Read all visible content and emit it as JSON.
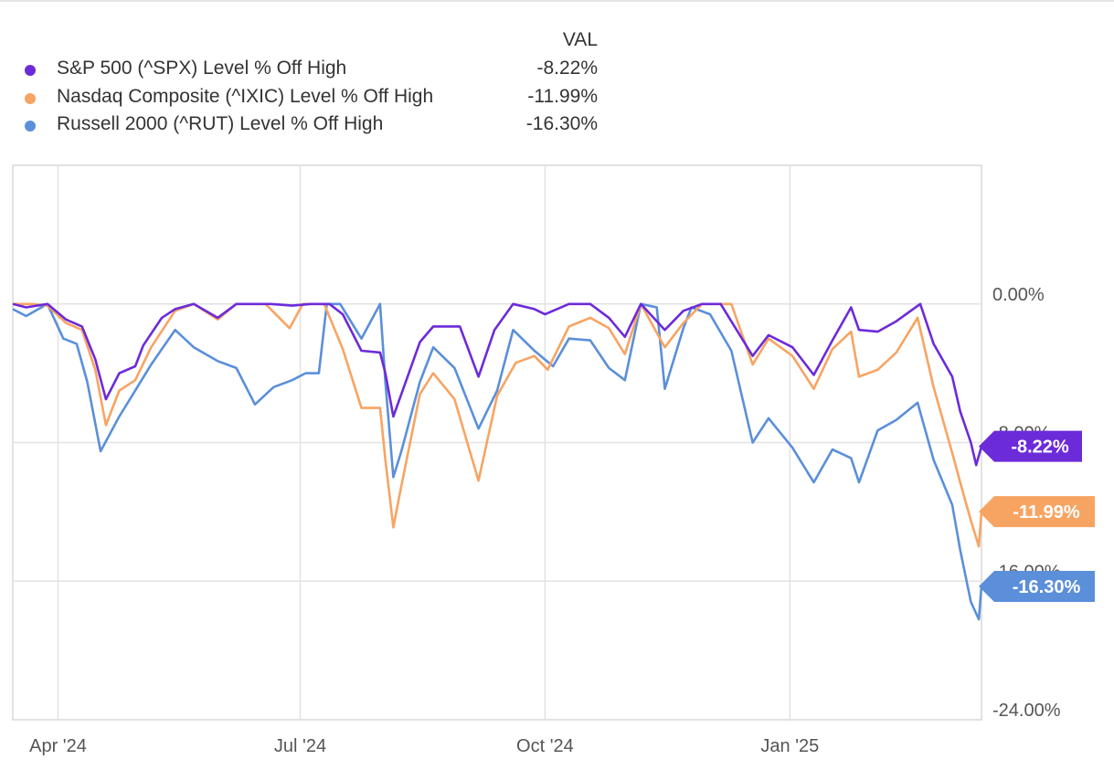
{
  "legend": {
    "header": "VAL",
    "items": [
      {
        "name": "S&P 500 (^SPX) Level % Off High",
        "value": "-8.22%"
      },
      {
        "name": "Nasdaq Composite (^IXIC) Level % Off High",
        "value": "-11.99%"
      },
      {
        "name": "Russell 2000 (^RUT) Level % Off High",
        "value": "-16.30%"
      }
    ]
  },
  "chart_data": {
    "type": "line",
    "title": "",
    "xlabel": "",
    "ylabel": "",
    "x_tick_labels": [
      "Apr '24",
      "Jul '24",
      "Oct '24",
      "Jan '25"
    ],
    "y_tick_labels": [
      "0.00%",
      "-8.00%",
      "-16.00%",
      "-24.00%"
    ],
    "y_ticks": [
      0,
      -8,
      -16,
      -24
    ],
    "ylim": [
      -24,
      8
    ],
    "xlim": [
      "2024-03-15",
      "2025-03-14"
    ],
    "x_ticks": [
      "2024-04-01",
      "2024-07-01",
      "2024-10-01",
      "2025-01-01"
    ],
    "grid": true,
    "legend_position": "top-left",
    "series": [
      {
        "name": "S&P 500 (^SPX) Level % Off High",
        "color": "#6c2bd9",
        "end_label": "-8.22%",
        "points": [
          [
            "2024-03-15",
            0
          ],
          [
            "2024-03-20",
            -0.2
          ],
          [
            "2024-03-28",
            0
          ],
          [
            "2024-04-04",
            -0.9
          ],
          [
            "2024-04-10",
            -1.3
          ],
          [
            "2024-04-15",
            -3.2
          ],
          [
            "2024-04-19",
            -5.5
          ],
          [
            "2024-04-24",
            -4.0
          ],
          [
            "2024-04-30",
            -3.6
          ],
          [
            "2024-05-03",
            -2.4
          ],
          [
            "2024-05-10",
            -0.8
          ],
          [
            "2024-05-15",
            -0.3
          ],
          [
            "2024-05-22",
            0
          ],
          [
            "2024-05-31",
            -0.8
          ],
          [
            "2024-06-07",
            0
          ],
          [
            "2024-06-20",
            0
          ],
          [
            "2024-06-28",
            -0.1
          ],
          [
            "2024-07-05",
            0
          ],
          [
            "2024-07-12",
            0
          ],
          [
            "2024-07-17",
            -0.6
          ],
          [
            "2024-07-24",
            -2.7
          ],
          [
            "2024-07-31",
            -2.8
          ],
          [
            "2024-08-02",
            -4.0
          ],
          [
            "2024-08-05",
            -6.5
          ],
          [
            "2024-08-08",
            -5.2
          ],
          [
            "2024-08-15",
            -2.2
          ],
          [
            "2024-08-20",
            -1.3
          ],
          [
            "2024-08-30",
            -1.3
          ],
          [
            "2024-09-06",
            -4.2
          ],
          [
            "2024-09-12",
            -1.5
          ],
          [
            "2024-09-19",
            0
          ],
          [
            "2024-09-27",
            -0.3
          ],
          [
            "2024-10-01",
            -0.6
          ],
          [
            "2024-10-10",
            0
          ],
          [
            "2024-10-18",
            0
          ],
          [
            "2024-10-25",
            -0.8
          ],
          [
            "2024-10-31",
            -1.9
          ],
          [
            "2024-11-06",
            0
          ],
          [
            "2024-11-15",
            -1.5
          ],
          [
            "2024-11-22",
            -0.4
          ],
          [
            "2024-11-29",
            0
          ],
          [
            "2024-12-06",
            0
          ],
          [
            "2024-12-18",
            -3.0
          ],
          [
            "2024-12-24",
            -1.8
          ],
          [
            "2025-01-02",
            -2.5
          ],
          [
            "2025-01-10",
            -4.1
          ],
          [
            "2025-01-17",
            -2.1
          ],
          [
            "2025-01-24",
            -0.2
          ],
          [
            "2025-01-27",
            -1.5
          ],
          [
            "2025-02-03",
            -1.6
          ],
          [
            "2025-02-10",
            -1.0
          ],
          [
            "2025-02-19",
            0
          ],
          [
            "2025-02-24",
            -2.3
          ],
          [
            "2025-03-03",
            -4.2
          ],
          [
            "2025-03-06",
            -6.2
          ],
          [
            "2025-03-10",
            -8.0
          ],
          [
            "2025-03-12",
            -9.3
          ],
          [
            "2025-03-14",
            -8.22
          ]
        ]
      },
      {
        "name": "Nasdaq Composite (^IXIC) Level % Off High",
        "color": "#f7a463",
        "end_label": "-11.99%",
        "points": [
          [
            "2024-03-15",
            0
          ],
          [
            "2024-03-22",
            0
          ],
          [
            "2024-03-28",
            -0.1
          ],
          [
            "2024-04-04",
            -1.1
          ],
          [
            "2024-04-10",
            -1.5
          ],
          [
            "2024-04-15",
            -3.8
          ],
          [
            "2024-04-19",
            -7.0
          ],
          [
            "2024-04-24",
            -5.0
          ],
          [
            "2024-04-30",
            -4.4
          ],
          [
            "2024-05-06",
            -2.5
          ],
          [
            "2024-05-15",
            -0.4
          ],
          [
            "2024-05-22",
            0
          ],
          [
            "2024-05-31",
            -0.9
          ],
          [
            "2024-06-07",
            0
          ],
          [
            "2024-06-18",
            0
          ],
          [
            "2024-06-27",
            -1.4
          ],
          [
            "2024-07-02",
            0
          ],
          [
            "2024-07-10",
            0
          ],
          [
            "2024-07-17",
            -2.6
          ],
          [
            "2024-07-24",
            -6.0
          ],
          [
            "2024-07-31",
            -6.0
          ],
          [
            "2024-08-02",
            -9.0
          ],
          [
            "2024-08-05",
            -12.9
          ],
          [
            "2024-08-08",
            -10.5
          ],
          [
            "2024-08-15",
            -5.2
          ],
          [
            "2024-08-20",
            -4.0
          ],
          [
            "2024-08-28",
            -5.5
          ],
          [
            "2024-09-06",
            -10.2
          ],
          [
            "2024-09-13",
            -5.3
          ],
          [
            "2024-09-20",
            -3.4
          ],
          [
            "2024-09-27",
            -3.0
          ],
          [
            "2024-10-02",
            -3.8
          ],
          [
            "2024-10-10",
            -1.3
          ],
          [
            "2024-10-18",
            -0.8
          ],
          [
            "2024-10-25",
            -1.4
          ],
          [
            "2024-10-31",
            -2.9
          ],
          [
            "2024-11-06",
            0
          ],
          [
            "2024-11-15",
            -2.5
          ],
          [
            "2024-11-22",
            -1.1
          ],
          [
            "2024-11-29",
            0
          ],
          [
            "2024-12-10",
            0
          ],
          [
            "2024-12-18",
            -3.5
          ],
          [
            "2024-12-24",
            -2.0
          ],
          [
            "2025-01-02",
            -3.0
          ],
          [
            "2025-01-10",
            -4.9
          ],
          [
            "2025-01-17",
            -2.6
          ],
          [
            "2025-01-24",
            -1.6
          ],
          [
            "2025-01-27",
            -4.2
          ],
          [
            "2025-02-03",
            -3.8
          ],
          [
            "2025-02-10",
            -2.8
          ],
          [
            "2025-02-18",
            -0.8
          ],
          [
            "2025-02-24",
            -4.8
          ],
          [
            "2025-03-03",
            -8.6
          ],
          [
            "2025-03-06",
            -10.3
          ],
          [
            "2025-03-10",
            -12.5
          ],
          [
            "2025-03-13",
            -14.0
          ],
          [
            "2025-03-14",
            -11.99
          ]
        ]
      },
      {
        "name": "Russell 2000 (^RUT) Level % Off High",
        "color": "#5b8fd9",
        "end_label": "-16.30%",
        "points": [
          [
            "2024-03-15",
            -0.3
          ],
          [
            "2024-03-20",
            -0.7
          ],
          [
            "2024-03-28",
            0
          ],
          [
            "2024-04-03",
            -2.0
          ],
          [
            "2024-04-08",
            -2.3
          ],
          [
            "2024-04-12",
            -4.5
          ],
          [
            "2024-04-17",
            -8.5
          ],
          [
            "2024-04-24",
            -6.5
          ],
          [
            "2024-04-30",
            -5.0
          ],
          [
            "2024-05-06",
            -3.5
          ],
          [
            "2024-05-15",
            -1.5
          ],
          [
            "2024-05-22",
            -2.5
          ],
          [
            "2024-05-31",
            -3.3
          ],
          [
            "2024-06-07",
            -3.7
          ],
          [
            "2024-06-14",
            -5.8
          ],
          [
            "2024-06-21",
            -4.8
          ],
          [
            "2024-06-28",
            -4.4
          ],
          [
            "2024-07-03",
            -4.0
          ],
          [
            "2024-07-08",
            -4.0
          ],
          [
            "2024-07-11",
            0
          ],
          [
            "2024-07-16",
            0
          ],
          [
            "2024-07-24",
            -2.0
          ],
          [
            "2024-07-31",
            0
          ],
          [
            "2024-08-02",
            -4.5
          ],
          [
            "2024-08-05",
            -10.0
          ],
          [
            "2024-08-08",
            -8.5
          ],
          [
            "2024-08-15",
            -4.5
          ],
          [
            "2024-08-20",
            -2.5
          ],
          [
            "2024-08-28",
            -3.7
          ],
          [
            "2024-09-06",
            -7.2
          ],
          [
            "2024-09-13",
            -5.0
          ],
          [
            "2024-09-19",
            -1.5
          ],
          [
            "2024-09-27",
            -2.7
          ],
          [
            "2024-10-04",
            -3.6
          ],
          [
            "2024-10-10",
            -2.0
          ],
          [
            "2024-10-18",
            -2.1
          ],
          [
            "2024-10-25",
            -3.7
          ],
          [
            "2024-10-31",
            -4.4
          ],
          [
            "2024-11-06",
            0
          ],
          [
            "2024-11-12",
            -0.2
          ],
          [
            "2024-11-15",
            -4.9
          ],
          [
            "2024-11-22",
            -1.4
          ],
          [
            "2024-11-25",
            -0.2
          ],
          [
            "2024-12-02",
            -0.6
          ],
          [
            "2024-12-10",
            -2.7
          ],
          [
            "2024-12-18",
            -8.0
          ],
          [
            "2024-12-24",
            -6.6
          ],
          [
            "2025-01-02",
            -8.3
          ],
          [
            "2025-01-10",
            -10.3
          ],
          [
            "2025-01-17",
            -8.4
          ],
          [
            "2025-01-24",
            -8.9
          ],
          [
            "2025-01-27",
            -10.3
          ],
          [
            "2025-02-03",
            -7.3
          ],
          [
            "2025-02-10",
            -6.7
          ],
          [
            "2025-02-18",
            -5.7
          ],
          [
            "2025-02-24",
            -9.0
          ],
          [
            "2025-03-03",
            -11.6
          ],
          [
            "2025-03-06",
            -14.2
          ],
          [
            "2025-03-10",
            -17.2
          ],
          [
            "2025-03-13",
            -18.2
          ],
          [
            "2025-03-14",
            -16.3
          ]
        ]
      }
    ]
  }
}
